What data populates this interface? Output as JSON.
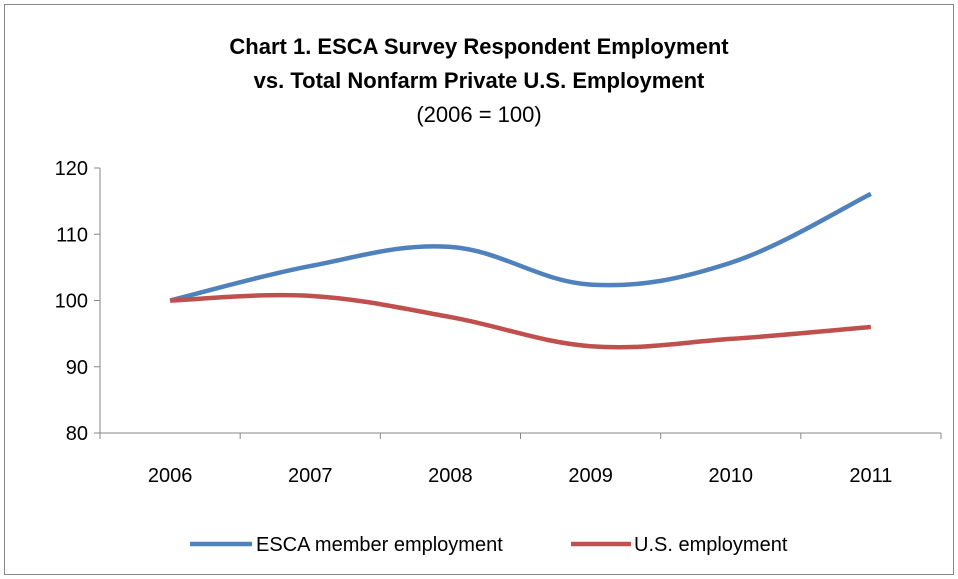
{
  "chart_data": {
    "type": "line",
    "title_lines": [
      "Chart 1. ESCA Survey Respondent Employment",
      "vs. Total Nonfarm Private U.S. Employment"
    ],
    "subtitle": "(2006 = 100)",
    "categories": [
      "2006",
      "2007",
      "2008",
      "2009",
      "2010",
      "2011"
    ],
    "ylim": [
      80,
      120
    ],
    "yticks": [
      80,
      90,
      100,
      110,
      120
    ],
    "grid": false,
    "legend_position": "bottom",
    "series": [
      {
        "name": "ESCA member employment",
        "color": "#4f81bd",
        "values": [
          100,
          105.2,
          108.1,
          102.4,
          105.7,
          116.1
        ]
      },
      {
        "name": "U.S. employment",
        "color": "#c0504d",
        "values": [
          100,
          100.7,
          97.5,
          93.1,
          94.2,
          96.0
        ]
      }
    ]
  }
}
